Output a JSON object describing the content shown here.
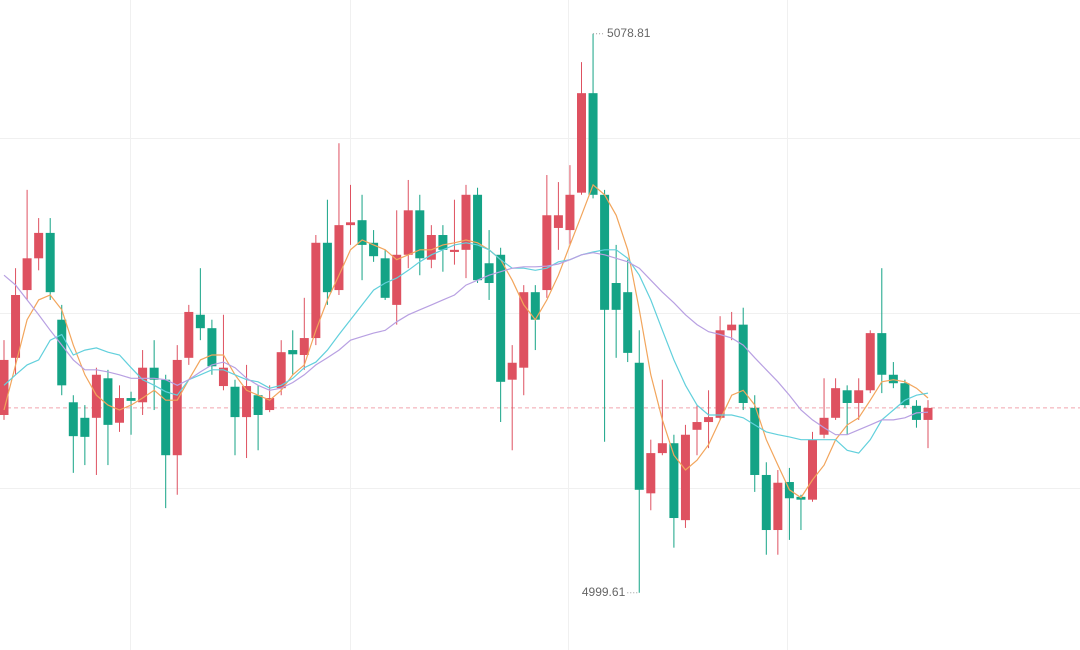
{
  "chart_data": {
    "type": "candlestick",
    "up_color": "#de5160",
    "down_color": "#14a386",
    "ylim": [
      4991.5,
      5083.6
    ],
    "yticks": [
      5064.1,
      5039.3,
      5014.5
    ],
    "grid": true,
    "last_price": 5025.8,
    "last_price_color": "#f2a5ad",
    "open": [
      5024.8,
      5032.9,
      5042.5,
      5047.0,
      5050.6,
      5038.3,
      5026.6,
      5024.4,
      5024.4,
      5030.0,
      5023.7,
      5027.2,
      5026.6,
      5031.5,
      5029.8,
      5019.1,
      5032.9,
      5039.0,
      5037.1,
      5028.9,
      5028.8,
      5024.5,
      5027.6,
      5025.5,
      5028.6,
      5034.0,
      5033.3,
      5035.7,
      5049.2,
      5042.5,
      5051.7,
      5052.4,
      5049.2,
      5047.0,
      5040.4,
      5047.5,
      5053.8,
      5046.8,
      5050.3,
      5047.9,
      5048.2,
      5056.0,
      5046.3,
      5047.5,
      5029.8,
      5031.5,
      5042.2,
      5042.5,
      5051.3,
      5051.0,
      5056.3,
      5070.4,
      5056.0,
      5043.5,
      5042.2,
      5032.2,
      5013.7,
      5019.4,
      5020.8,
      5009.9,
      5022.7,
      5023.8,
      5024.4,
      5036.8,
      5037.6,
      5025.8,
      5016.3,
      5008.5,
      5015.3,
      5013.2,
      5012.8,
      5022.0,
      5024.4,
      5028.3,
      5026.5,
      5028.3,
      5036.4,
      5030.5,
      5029.3,
      5026.1,
      5024.1
    ],
    "high": [
      5035.4,
      5045.6,
      5056.7,
      5052.7,
      5052.7,
      5040.4,
      5027.6,
      5026.2,
      5031.5,
      5031.2,
      5029.0,
      5028.1,
      5034.0,
      5035.4,
      5030.5,
      5034.7,
      5040.4,
      5045.6,
      5038.3,
      5039.0,
      5029.8,
      5031.9,
      5029.0,
      5029.0,
      5035.4,
      5036.8,
      5041.4,
      5050.3,
      5055.3,
      5063.3,
      5057.4,
      5056.0,
      5051.0,
      5048.2,
      5053.8,
      5058.1,
      5056.0,
      5051.7,
      5051.7,
      5055.3,
      5057.4,
      5057.0,
      5051.0,
      5048.5,
      5034.7,
      5043.2,
      5043.2,
      5058.8,
      5057.8,
      5060.2,
      5074.8,
      5078.81,
      5056.7,
      5048.9,
      5046.8,
      5036.8,
      5021.3,
      5029.8,
      5022.0,
      5023.4,
      5026.2,
      5028.3,
      5038.8,
      5039.4,
      5040.0,
      5027.6,
      5018.1,
      5017.0,
      5017.3,
      5013.5,
      5022.4,
      5030.0,
      5030.0,
      5029.0,
      5030.0,
      5036.8,
      5045.6,
      5032.3,
      5029.8,
      5026.9,
      5026.9
    ],
    "low": [
      5024.1,
      5030.5,
      5041.1,
      5045.3,
      5041.1,
      5027.6,
      5016.6,
      5017.7,
      5016.3,
      5017.7,
      5022.4,
      5022.0,
      5024.8,
      5025.5,
      5011.6,
      5013.5,
      5031.9,
      5035.4,
      5030.5,
      5028.3,
      5019.1,
      5018.7,
      5019.8,
      5025.2,
      5027.6,
      5030.5,
      5031.2,
      5034.7,
      5040.4,
      5041.8,
      5048.9,
      5043.9,
      5046.5,
      5041.1,
      5037.6,
      5045.6,
      5044.6,
      5045.6,
      5045.1,
      5046.1,
      5044.2,
      5043.5,
      5041.1,
      5023.8,
      5019.8,
      5027.6,
      5034.0,
      5041.4,
      5048.2,
      5048.9,
      5056.0,
      5055.5,
      5021.0,
      5032.9,
      5032.3,
      4999.61,
      5011.3,
      5019.1,
      5006.0,
      5008.8,
      5019.1,
      5020.1,
      5024.1,
      5035.4,
      5025.5,
      5013.9,
      5005.0,
      5005.0,
      5007.1,
      5008.5,
      5012.5,
      5021.5,
      5024.1,
      5022.0,
      5024.1,
      5027.9,
      5027.9,
      5028.6,
      5025.8,
      5023.0,
      5020.1
    ],
    "close": [
      5032.6,
      5041.8,
      5047.0,
      5050.6,
      5042.2,
      5029.0,
      5021.8,
      5021.7,
      5030.5,
      5023.4,
      5027.2,
      5026.8,
      5031.5,
      5029.8,
      5019.1,
      5032.6,
      5039.4,
      5037.1,
      5031.7,
      5031.5,
      5024.5,
      5028.9,
      5024.8,
      5027.2,
      5033.7,
      5033.4,
      5035.7,
      5049.2,
      5042.2,
      5051.7,
      5052.1,
      5048.9,
      5047.3,
      5041.4,
      5047.5,
      5053.8,
      5047.0,
      5050.3,
      5048.2,
      5048.2,
      5056.0,
      5043.9,
      5043.5,
      5029.5,
      5032.2,
      5042.2,
      5038.3,
      5053.1,
      5053.1,
      5056.0,
      5070.4,
      5056.0,
      5039.7,
      5039.7,
      5033.6,
      5014.2,
      5019.4,
      5020.8,
      5010.2,
      5022.0,
      5023.8,
      5024.5,
      5036.8,
      5037.6,
      5026.5,
      5016.3,
      5008.5,
      5015.2,
      5013.0,
      5012.8,
      5021.3,
      5024.4,
      5028.6,
      5026.5,
      5028.3,
      5036.4,
      5030.5,
      5029.3,
      5026.2,
      5024.1,
      5025.8
    ],
    "series": [
      {
        "color": "#f2a55c",
        "values": [
          5025.5,
          5031.9,
          5038.3,
          5041.1,
          5041.8,
          5039.7,
          5034.7,
          5030.5,
          5027.6,
          5026.2,
          5025.5,
          5026.2,
          5027.2,
          5028.3,
          5026.9,
          5026.9,
          5029.8,
          5032.6,
          5033.3,
          5033.3,
          5030.5,
          5028.3,
          5027.6,
          5026.9,
          5028.3,
          5030.5,
          5031.9,
          5036.8,
          5041.1,
          5044.6,
          5048.2,
          5049.6,
          5048.9,
          5048.2,
          5046.8,
          5047.5,
          5048.2,
          5048.2,
          5048.9,
          5049.2,
          5049.6,
          5049.2,
          5048.2,
          5046.8,
          5043.9,
          5040.4,
          5038.3,
          5041.1,
          5044.6,
          5048.9,
          5053.1,
          5057.4,
          5056.0,
          5053.1,
          5048.2,
          5039.7,
          5030.5,
          5024.1,
          5019.1,
          5017.0,
          5018.4,
          5020.6,
          5024.1,
          5027.6,
          5028.3,
          5026.2,
          5021.3,
          5017.7,
          5014.2,
          5013.1,
          5015.6,
          5017.7,
          5021.3,
          5023.4,
          5024.4,
          5026.9,
          5029.5,
          5029.8,
          5029.5,
          5028.6,
          5027.2
        ]
      },
      {
        "color": "#62d0dc",
        "values": [
          5029.0,
          5030.5,
          5031.9,
          5032.6,
          5035.4,
          5036.2,
          5033.3,
          5034.0,
          5034.3,
          5033.7,
          5033.3,
          5031.5,
          5029.8,
          5029.0,
          5028.1,
          5027.6,
          5029.8,
          5030.5,
          5031.2,
          5031.2,
          5030.5,
          5029.8,
          5029.5,
          5028.6,
          5029.0,
          5030.0,
          5031.5,
          5032.3,
          5034.0,
          5036.2,
          5038.3,
          5040.4,
          5042.5,
          5043.5,
          5044.2,
          5045.3,
          5046.5,
          5047.5,
          5048.2,
          5048.9,
          5049.2,
          5048.9,
          5048.2,
          5046.8,
          5045.6,
          5045.6,
          5045.3,
          5045.6,
          5046.5,
          5046.8,
          5047.5,
          5047.9,
          5048.2,
          5048.2,
          5047.0,
          5044.6,
          5041.1,
          5036.8,
          5032.6,
          5029.0,
          5026.2,
          5024.8,
          5024.8,
          5024.8,
          5024.4,
          5023.4,
          5022.4,
          5022.0,
          5021.7,
          5021.3,
          5021.3,
          5021.3,
          5021.3,
          5019.8,
          5019.4,
          5021.3,
          5024.1,
          5025.5,
          5026.9,
          5027.6,
          5027.9
        ]
      },
      {
        "color": "#b8a0e2",
        "values": [
          5044.6,
          5043.2,
          5041.1,
          5039.0,
          5036.8,
          5034.7,
          5032.6,
          5031.2,
          5031.2,
          5030.9,
          5030.5,
          5030.0,
          5030.0,
          5030.0,
          5029.8,
          5029.0,
          5029.8,
          5030.9,
          5031.9,
          5032.3,
          5031.5,
          5030.0,
          5029.0,
          5028.3,
          5028.6,
          5029.4,
          5030.5,
          5031.9,
          5032.9,
          5034.0,
          5035.4,
          5035.9,
          5036.4,
          5036.8,
          5038.0,
          5039.0,
          5039.7,
          5040.4,
          5041.1,
          5041.8,
          5043.2,
          5043.9,
          5044.6,
          5045.1,
          5045.6,
          5045.8,
          5045.8,
          5045.9,
          5046.2,
          5046.8,
          5047.5,
          5047.8,
          5047.5,
          5047.0,
          5046.5,
          5045.6,
          5043.9,
          5042.2,
          5040.7,
          5039.0,
          5037.6,
          5036.6,
          5036.2,
          5035.7,
          5034.7,
          5032.9,
          5031.2,
          5029.5,
          5027.6,
          5025.5,
          5024.1,
          5023.0,
          5022.0,
          5022.0,
          5022.7,
          5023.4,
          5024.1,
          5024.1,
          5024.4,
          5025.1,
          5025.2
        ]
      }
    ]
  }
}
